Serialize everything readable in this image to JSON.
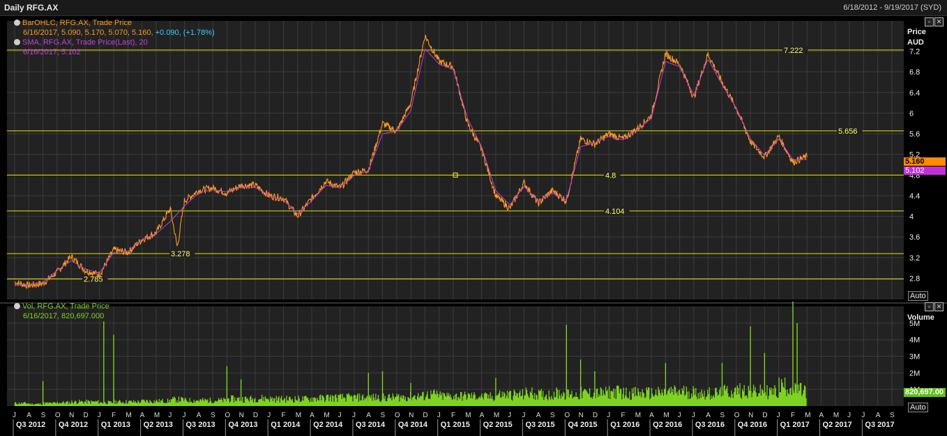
{
  "window": {
    "title": "Daily RFG.AX",
    "date_range": "6/18/2012 - 9/19/2017 (SYD)"
  },
  "price_panel": {
    "legend": {
      "ohlc_title": "BarOHLC, RFG.AX, Trade Price",
      "ohlc_values": "6/16/2017, 5.090, 5.170, 5.070, 5.160,",
      "ohlc_change": "+0.090, (+1.78%)",
      "sma_title": "SMA, RFG.AX, Trade Price(Last),  20",
      "sma_values": "6/16/2017, 5.102"
    },
    "axis_title": "Price",
    "axis_unit": "AUD",
    "last_price_tag": "5.160",
    "sma_tag": "5.102",
    "auto_button": "Auto",
    "colors": {
      "price": "#ff9a1f",
      "sma": "#c43fe0",
      "hlines": "#e6e600",
      "grid": "#3c3c3c",
      "tag_price": "#ff8c00",
      "tag_sma": "#c030d8"
    }
  },
  "volume_panel": {
    "legend": {
      "title": "Vol, RFG.AX, Trade Price",
      "values": "6/16/2017, 820,697.000"
    },
    "axis_title": "Volume",
    "last_tag": "820,697.00",
    "auto_button": "Auto",
    "color": "#7ed321"
  },
  "chart_data": [
    {
      "type": "line",
      "title": "Daily RFG.AX",
      "ylabel": "Price AUD",
      "ylim": [
        2.55,
        7.72
      ],
      "y_ticks": [
        "2.8",
        "3.2",
        "3.6",
        "4",
        "4.4",
        "4.8",
        "5.2",
        "5.6",
        "6",
        "6.4",
        "6.8",
        "7.2"
      ],
      "x_month_letters": [
        "J",
        "A",
        "S",
        "O",
        "N",
        "D",
        "J",
        "F",
        "M",
        "A",
        "M",
        "J",
        "J",
        "A",
        "S",
        "O",
        "N",
        "D",
        "J",
        "F",
        "M",
        "A",
        "M",
        "J",
        "J",
        "A",
        "S",
        "O",
        "N",
        "D",
        "J",
        "F",
        "M",
        "A",
        "M",
        "J",
        "J",
        "A",
        "S",
        "O",
        "N",
        "D",
        "J",
        "F",
        "M",
        "A",
        "M",
        "J",
        "J",
        "A",
        "S",
        "O",
        "N",
        "D",
        "J",
        "F",
        "M",
        "A",
        "M",
        "J",
        "J",
        "A",
        "S"
      ],
      "x_quarters": [
        "Q3 2012",
        "Q4 2012",
        "Q1 2013",
        "Q2 2013",
        "Q3 2013",
        "Q4 2013",
        "Q1 2014",
        "Q2 2014",
        "Q3 2014",
        "Q4 2014",
        "Q1 2015",
        "Q2 2015",
        "Q3 2015",
        "Q4 2015",
        "Q1 2016",
        "Q2 2016",
        "Q3 2016",
        "Q4 2016",
        "Q1 2017",
        "Q2 2017",
        "Q3 2017"
      ],
      "horizontal_levels": [
        {
          "value": 2.785,
          "label": "2.785"
        },
        {
          "value": 3.278,
          "label": "3.278"
        },
        {
          "value": 4.104,
          "label": "4.104"
        },
        {
          "value": 4.8,
          "label": "4.8"
        },
        {
          "value": 5.656,
          "label": "5.656"
        },
        {
          "value": 7.222,
          "label": "7.222"
        }
      ],
      "series": [
        {
          "name": "BarOHLC, RFG.AX, Trade Price",
          "points": [
            [
              0,
              2.72
            ],
            [
              1,
              2.66
            ],
            [
              2,
              2.7
            ],
            [
              3,
              2.92
            ],
            [
              4,
              3.22
            ],
            [
              5,
              2.95
            ],
            [
              6,
              2.87
            ],
            [
              7,
              3.35
            ],
            [
              8,
              3.3
            ],
            [
              9,
              3.55
            ],
            [
              10,
              3.68
            ],
            [
              11,
              4.15
            ],
            [
              11.5,
              3.4
            ],
            [
              12,
              4.3
            ],
            [
              13,
              4.5
            ],
            [
              14,
              4.55
            ],
            [
              15,
              4.45
            ],
            [
              16,
              4.6
            ],
            [
              17,
              4.6
            ],
            [
              18,
              4.4
            ],
            [
              19,
              4.35
            ],
            [
              20,
              4.0
            ],
            [
              21,
              4.35
            ],
            [
              22,
              4.68
            ],
            [
              23,
              4.55
            ],
            [
              24,
              4.85
            ],
            [
              25,
              4.9
            ],
            [
              26,
              5.8
            ],
            [
              27,
              5.65
            ],
            [
              28,
              6.2
            ],
            [
              29,
              7.5
            ],
            [
              30,
              7.0
            ],
            [
              31,
              6.9
            ],
            [
              32,
              5.8
            ],
            [
              33,
              5.3
            ],
            [
              34,
              4.4
            ],
            [
              35,
              4.15
            ],
            [
              36,
              4.65
            ],
            [
              37,
              4.25
            ],
            [
              38,
              4.5
            ],
            [
              39,
              4.3
            ],
            [
              40,
              5.5
            ],
            [
              41,
              5.4
            ],
            [
              42,
              5.6
            ],
            [
              43,
              5.5
            ],
            [
              44,
              5.7
            ],
            [
              45,
              5.95
            ],
            [
              46,
              7.15
            ],
            [
              47,
              6.95
            ],
            [
              48,
              6.3
            ],
            [
              49,
              7.15
            ],
            [
              50,
              6.6
            ],
            [
              51,
              6.1
            ],
            [
              52,
              5.45
            ],
            [
              53,
              5.15
            ],
            [
              54,
              5.55
            ],
            [
              55,
              5.05
            ],
            [
              56,
              5.16
            ]
          ]
        },
        {
          "name": "SMA, RFG.AX, Trade Price(Last),  20",
          "points": [
            [
              0,
              2.68
            ],
            [
              1,
              2.68
            ],
            [
              2,
              2.72
            ],
            [
              3,
              2.95
            ],
            [
              4,
              3.14
            ],
            [
              5,
              2.98
            ],
            [
              6,
              2.9
            ],
            [
              7,
              3.3
            ],
            [
              8,
              3.32
            ],
            [
              9,
              3.55
            ],
            [
              10,
              3.66
            ],
            [
              11,
              3.9
            ],
            [
              12,
              4.2
            ],
            [
              13,
              4.45
            ],
            [
              14,
              4.52
            ],
            [
              15,
              4.47
            ],
            [
              16,
              4.57
            ],
            [
              17,
              4.56
            ],
            [
              18,
              4.4
            ],
            [
              19,
              4.32
            ],
            [
              20,
              4.05
            ],
            [
              21,
              4.3
            ],
            [
              22,
              4.6
            ],
            [
              23,
              4.55
            ],
            [
              24,
              4.8
            ],
            [
              25,
              4.88
            ],
            [
              26,
              5.6
            ],
            [
              27,
              5.65
            ],
            [
              28,
              6.05
            ],
            [
              29,
              7.25
            ],
            [
              30,
              6.95
            ],
            [
              31,
              6.85
            ],
            [
              32,
              5.9
            ],
            [
              33,
              5.35
            ],
            [
              34,
              4.5
            ],
            [
              35,
              4.22
            ],
            [
              36,
              4.58
            ],
            [
              37,
              4.3
            ],
            [
              38,
              4.45
            ],
            [
              39,
              4.32
            ],
            [
              40,
              5.35
            ],
            [
              41,
              5.42
            ],
            [
              42,
              5.55
            ],
            [
              43,
              5.48
            ],
            [
              44,
              5.68
            ],
            [
              45,
              5.9
            ],
            [
              46,
              7.0
            ],
            [
              47,
              6.9
            ],
            [
              48,
              6.35
            ],
            [
              49,
              7.05
            ],
            [
              50,
              6.55
            ],
            [
              51,
              6.1
            ],
            [
              52,
              5.5
            ],
            [
              53,
              5.18
            ],
            [
              54,
              5.5
            ],
            [
              55,
              5.1
            ],
            [
              56,
              5.102
            ]
          ]
        }
      ]
    },
    {
      "type": "bar",
      "title": "Vol, RFG.AX, Trade Price",
      "ylabel": "Volume",
      "ylim": [
        0,
        5500000
      ],
      "y_ticks": [
        "1M",
        "2M",
        "3M",
        "4M",
        "5M"
      ],
      "series": [
        {
          "name": "Vol, RFG.AX, Trade Price",
          "values": [
            0.2,
            0.15,
            0.2,
            0.25,
            0.3,
            0.3,
            0.25,
            0.3,
            0.3,
            0.35,
            0.35,
            0.45,
            0.4,
            0.4,
            0.4,
            0.5,
            0.5,
            0.55,
            0.5,
            0.5,
            0.5,
            0.55,
            0.6,
            0.6,
            0.6,
            0.6,
            0.6,
            0.65,
            0.7,
            0.8,
            0.7,
            0.7,
            0.7,
            0.65,
            0.8,
            0.8,
            0.9,
            0.8,
            0.9,
            0.8,
            0.9,
            0.9,
            1.0,
            0.9,
            0.9,
            0.9,
            1.0,
            1.0,
            0.9,
            0.9,
            1.0,
            1.1,
            1.0,
            1.0,
            1.4,
            1.1,
            0.82
          ],
          "spikes_millions": [
            [
              2,
              1.5
            ],
            [
              6.3,
              5.1
            ],
            [
              7,
              4.3
            ],
            [
              15,
              2.4
            ],
            [
              16,
              1.6
            ],
            [
              25,
              2.0
            ],
            [
              26,
              2.1
            ],
            [
              28,
              1.4
            ],
            [
              34,
              1.7
            ],
            [
              39,
              4.9
            ],
            [
              40,
              2.8
            ],
            [
              41,
              2.1
            ],
            [
              46,
              2.6
            ],
            [
              50,
              2.6
            ],
            [
              52,
              4.8
            ],
            [
              53,
              3.2
            ],
            [
              55,
              6.3
            ],
            [
              55.3,
              5.0
            ]
          ]
        }
      ]
    }
  ]
}
